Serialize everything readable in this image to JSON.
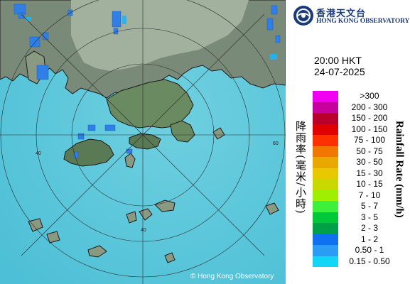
{
  "logo": {
    "chinese_name": "香港天文台",
    "english_name": "HONG KONG OBSERVATORY"
  },
  "map": {
    "copyright": "© Hong Kong Observatory",
    "range_ring_labels": [
      "40",
      "60"
    ],
    "colors": {
      "sea": "#5ec8dc",
      "land": "#8a9a82",
      "coast": "#1a1a1a",
      "rings": "#2a2a2a",
      "light_rain": "#1fb4f5",
      "moderate_rain": "#2f7fe6"
    }
  },
  "timestamp": {
    "time": "20:00 HKT",
    "date": "24-07-2025"
  },
  "legend": {
    "title_chinese": "降雨率(毫米/小時)",
    "title_english": "Rainfall Rate (mm/h)",
    "items": [
      {
        "label": ">300",
        "color": "#f000f0"
      },
      {
        "label": "200 - 300",
        "color": "#c8009e"
      },
      {
        "label": "150 - 200",
        "color": "#b8002a"
      },
      {
        "label": "100 - 150",
        "color": "#e00000"
      },
      {
        "label": "75 - 100",
        "color": "#ff3000"
      },
      {
        "label": "50 - 75",
        "color": "#f07800"
      },
      {
        "label": "30 - 50",
        "color": "#e8a800"
      },
      {
        "label": "15 - 30",
        "color": "#e8c800"
      },
      {
        "label": "10 - 15",
        "color": "#c8d800"
      },
      {
        "label": "7 - 10",
        "color": "#a0ee00"
      },
      {
        "label": "5 - 7",
        "color": "#3cf03c"
      },
      {
        "label": "3 - 5",
        "color": "#00c838"
      },
      {
        "label": "2 - 3",
        "color": "#00a048"
      },
      {
        "label": "1 - 2",
        "color": "#1070f0"
      },
      {
        "label": "0.50 - 1",
        "color": "#2b9cf5"
      },
      {
        "label": "0.15 - 0.50",
        "color": "#13d6f7"
      }
    ]
  }
}
